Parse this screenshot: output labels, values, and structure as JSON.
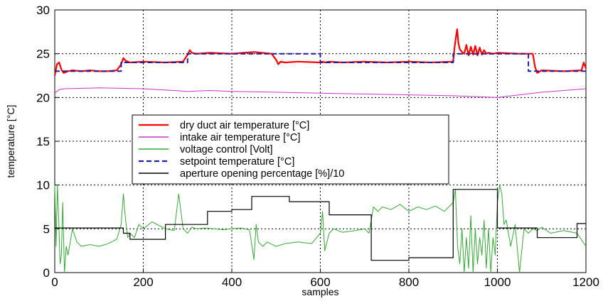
{
  "chart_data": {
    "type": "line",
    "title": "",
    "xlabel": "samples",
    "ylabel": "temperature [°C]",
    "xlim": [
      0,
      1200
    ],
    "ylim": [
      0,
      30
    ],
    "xticks": [
      0,
      200,
      400,
      600,
      800,
      1000,
      1200
    ],
    "yticks": [
      0,
      5,
      10,
      15,
      20,
      25,
      30
    ],
    "grid": true,
    "legend_position": "center-left",
    "series": [
      {
        "name": "dry duct air temperature [°C]",
        "color": "#ff0000",
        "style": "solid",
        "x": [
          0,
          5,
          10,
          15,
          20,
          30,
          40,
          60,
          80,
          100,
          120,
          140,
          150,
          155,
          160,
          170,
          200,
          250,
          290,
          300,
          305,
          310,
          320,
          350,
          400,
          450,
          490,
          500,
          505,
          510,
          520,
          550,
          600,
          605,
          610,
          620,
          650,
          700,
          750,
          800,
          850,
          900,
          903,
          906,
          909,
          912,
          915,
          920,
          925,
          930,
          935,
          940,
          945,
          950,
          955,
          960,
          965,
          970,
          975,
          980,
          990,
          1000,
          1050,
          1080,
          1085,
          1090,
          1100,
          1150,
          1190,
          1195,
          1200
        ],
        "values": [
          22.5,
          23.8,
          24.0,
          23.2,
          22.8,
          23.0,
          23.1,
          23.0,
          23.1,
          23.0,
          23.0,
          23.1,
          23.8,
          24.5,
          24.2,
          24.0,
          24.1,
          24.0,
          24.1,
          24.9,
          25.4,
          25.1,
          25.0,
          25.1,
          25.0,
          25.2,
          25.0,
          24.3,
          23.8,
          24.1,
          24.0,
          24.1,
          24.0,
          24.1,
          24.0,
          24.1,
          24.0,
          24.1,
          24.0,
          24.1,
          24.0,
          24.1,
          25.6,
          26.8,
          27.8,
          26.2,
          25.5,
          25.2,
          25.0,
          26.0,
          24.8,
          25.8,
          24.9,
          25.9,
          24.8,
          25.7,
          24.9,
          25.4,
          25.0,
          25.1,
          25.0,
          25.1,
          25.0,
          25.0,
          23.5,
          22.8,
          23.1,
          23.0,
          23.1,
          24.0,
          23.3
        ]
      },
      {
        "name": "intake air temperature [°C]",
        "color": "#cc33cc",
        "style": "solid",
        "x": [
          0,
          10,
          20,
          100,
          200,
          300,
          350,
          400,
          500,
          600,
          700,
          800,
          900,
          950,
          1000,
          1050,
          1100,
          1150,
          1200
        ],
        "values": [
          20.5,
          20.9,
          21.0,
          21.1,
          21.0,
          20.7,
          20.8,
          20.7,
          20.6,
          20.5,
          20.4,
          20.3,
          20.2,
          20.1,
          20.0,
          20.3,
          20.6,
          20.8,
          21.0
        ]
      },
      {
        "name": "voltage control [Volt]",
        "color": "#33aa33",
        "style": "solid",
        "x": [
          0,
          3,
          6,
          9,
          12,
          15,
          18,
          22,
          26,
          30,
          40,
          50,
          60,
          80,
          100,
          120,
          140,
          150,
          155,
          160,
          165,
          170,
          180,
          190,
          200,
          220,
          250,
          270,
          280,
          290,
          300,
          310,
          320,
          340,
          360,
          380,
          400,
          420,
          440,
          450,
          455,
          460,
          470,
          480,
          500,
          520,
          550,
          580,
          600,
          605,
          610,
          620,
          630,
          650,
          680,
          700,
          710,
          715,
          720,
          730,
          740,
          760,
          780,
          800,
          820,
          840,
          860,
          880,
          900,
          905,
          910,
          915,
          920,
          925,
          930,
          935,
          940,
          945,
          950,
          955,
          960,
          965,
          970,
          975,
          980,
          985,
          990,
          995,
          1000,
          1005,
          1010,
          1015,
          1020,
          1030,
          1040,
          1050,
          1060,
          1070,
          1080,
          1090,
          1100,
          1120,
          1150,
          1180,
          1200
        ],
        "values": [
          10.0,
          3.0,
          10.0,
          6.0,
          1.0,
          2.0,
          8.0,
          0.0,
          3.0,
          2.0,
          5.0,
          3.5,
          3.0,
          3.2,
          3.0,
          3.3,
          3.8,
          5.5,
          9.0,
          6.0,
          4.0,
          4.5,
          4.0,
          5.5,
          5.0,
          5.8,
          5.0,
          4.8,
          9.0,
          5.0,
          4.5,
          5.2,
          5.0,
          5.1,
          5.0,
          4.9,
          5.0,
          5.1,
          4.9,
          1.5,
          5.5,
          3.5,
          3.0,
          3.5,
          3.0,
          3.3,
          3.5,
          3.3,
          4.5,
          7.0,
          2.5,
          4.5,
          5.0,
          4.6,
          4.8,
          5.0,
          4.5,
          6.0,
          7.5,
          7.0,
          7.5,
          7.2,
          7.8,
          7.0,
          7.5,
          7.2,
          7.6,
          7.0,
          8.0,
          9.5,
          3.0,
          1.0,
          5.0,
          0.0,
          4.0,
          0.5,
          6.5,
          0.0,
          5.0,
          1.0,
          4.0,
          2.0,
          6.0,
          0.5,
          5.0,
          0.0,
          4.0,
          2.0,
          8.0,
          10.0,
          9.0,
          5.5,
          6.0,
          3.0,
          5.5,
          0.0,
          5.0,
          4.5,
          5.0,
          4.8,
          5.2,
          4.5,
          4.8,
          4.5,
          3.0
        ]
      },
      {
        "name": "setpoint temperature [°C]",
        "color": "#1f1fa0",
        "style": "dashed",
        "x": [
          0,
          150,
          150,
          300,
          300,
          600,
          600,
          900,
          900,
          1000,
          1000,
          1070,
          1070,
          1200
        ],
        "values": [
          23,
          23,
          24,
          24,
          25,
          25,
          24,
          24,
          25,
          25,
          25,
          25,
          23,
          23
        ]
      },
      {
        "name": "aperture opening percentage [%]/10",
        "color": "#000000",
        "style": "solid",
        "x": [
          0,
          155,
          155,
          170,
          170,
          250,
          250,
          345,
          345,
          400,
          400,
          445,
          445,
          530,
          530,
          620,
          620,
          715,
          715,
          800,
          800,
          900,
          900,
          1000,
          1000,
          1090,
          1090,
          1180,
          1180,
          1200
        ],
        "values": [
          5.1,
          5.1,
          4.5,
          4.5,
          3.8,
          3.8,
          5.5,
          5.5,
          7.0,
          7.0,
          7.2,
          7.2,
          8.7,
          8.7,
          8.1,
          8.1,
          6.6,
          6.6,
          1.4,
          1.4,
          1.7,
          1.7,
          9.5,
          9.5,
          5.1,
          5.1,
          4.0,
          4.0,
          5.6,
          5.6
        ]
      }
    ]
  }
}
